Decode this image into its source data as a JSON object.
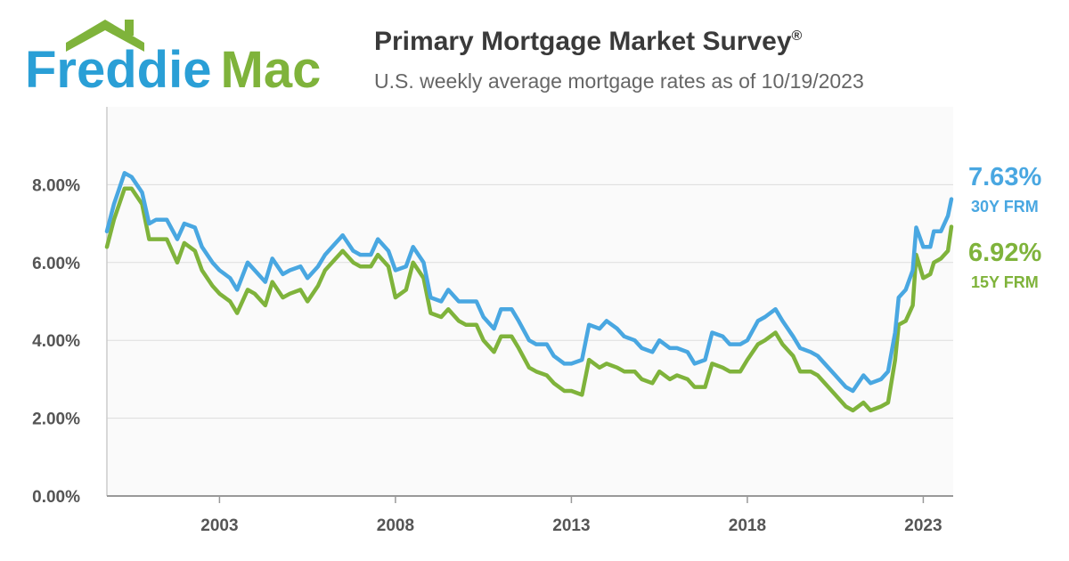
{
  "header": {
    "logo_text": "Freddie Mac",
    "title": "Primary Mortgage Market Survey",
    "title_mark": "®",
    "subtitle": "U.S. weekly average mortgage rates as of 10/19/2023"
  },
  "colors": {
    "series_30y": "#49a7e1",
    "series_15y": "#7fb33b",
    "logo_blue": "#2a9fd6",
    "logo_green": "#7fb33b"
  },
  "chart_data": {
    "type": "line",
    "title": "Primary Mortgage Market Survey®",
    "subtitle": "U.S. weekly average mortgage rates as of 10/19/2023",
    "xlabel": "",
    "ylabel": "",
    "xlim": [
      1999.8,
      2023.85
    ],
    "ylim": [
      0,
      10
    ],
    "x_ticks": [
      2003,
      2008,
      2013,
      2018,
      2023
    ],
    "x_tick_labels": [
      "2003",
      "2008",
      "2013",
      "2018",
      "2023"
    ],
    "y_ticks": [
      0,
      2,
      4,
      6,
      8
    ],
    "y_tick_labels": [
      "0.00%",
      "2.00%",
      "4.00%",
      "6.00%",
      "8.00%"
    ],
    "grid": "horizontal",
    "legend": "right-end labels",
    "series": [
      {
        "name": "30Y FRM",
        "last_value_label": "7.63%",
        "x": [
          1999.8,
          2000.0,
          2000.3,
          2000.5,
          2000.8,
          2001.0,
          2001.2,
          2001.5,
          2001.8,
          2002.0,
          2002.3,
          2002.5,
          2002.8,
          2003.0,
          2003.3,
          2003.5,
          2003.8,
          2004.0,
          2004.3,
          2004.5,
          2004.8,
          2005.0,
          2005.3,
          2005.5,
          2005.8,
          2006.0,
          2006.3,
          2006.5,
          2006.8,
          2007.0,
          2007.3,
          2007.5,
          2007.8,
          2008.0,
          2008.3,
          2008.5,
          2008.8,
          2009.0,
          2009.3,
          2009.5,
          2009.8,
          2010.0,
          2010.3,
          2010.5,
          2010.8,
          2011.0,
          2011.3,
          2011.5,
          2011.8,
          2012.0,
          2012.3,
          2012.5,
          2012.8,
          2013.0,
          2013.3,
          2013.5,
          2013.8,
          2014.0,
          2014.3,
          2014.5,
          2014.8,
          2015.0,
          2015.3,
          2015.5,
          2015.8,
          2016.0,
          2016.3,
          2016.5,
          2016.8,
          2017.0,
          2017.3,
          2017.5,
          2017.8,
          2018.0,
          2018.3,
          2018.5,
          2018.8,
          2019.0,
          2019.3,
          2019.5,
          2019.8,
          2020.0,
          2020.3,
          2020.5,
          2020.8,
          2021.0,
          2021.3,
          2021.5,
          2021.8,
          2022.0,
          2022.2,
          2022.3,
          2022.5,
          2022.7,
          2022.8,
          2023.0,
          2023.2,
          2023.3,
          2023.5,
          2023.7,
          2023.8
        ],
        "values": [
          6.8,
          7.5,
          8.3,
          8.2,
          7.8,
          7.0,
          7.1,
          7.1,
          6.6,
          7.0,
          6.9,
          6.4,
          6.0,
          5.8,
          5.6,
          5.3,
          6.0,
          5.8,
          5.5,
          6.1,
          5.7,
          5.8,
          5.9,
          5.6,
          5.9,
          6.2,
          6.5,
          6.7,
          6.3,
          6.2,
          6.2,
          6.6,
          6.3,
          5.8,
          5.9,
          6.4,
          6.0,
          5.1,
          5.0,
          5.3,
          5.0,
          5.0,
          5.0,
          4.6,
          4.3,
          4.8,
          4.8,
          4.5,
          4.0,
          3.9,
          3.9,
          3.6,
          3.4,
          3.4,
          3.5,
          4.4,
          4.3,
          4.5,
          4.3,
          4.1,
          4.0,
          3.8,
          3.7,
          4.0,
          3.8,
          3.8,
          3.7,
          3.4,
          3.5,
          4.2,
          4.1,
          3.9,
          3.9,
          4.0,
          4.5,
          4.6,
          4.8,
          4.5,
          4.1,
          3.8,
          3.7,
          3.6,
          3.3,
          3.1,
          2.8,
          2.7,
          3.1,
          2.9,
          3.0,
          3.2,
          4.2,
          5.1,
          5.3,
          5.8,
          6.9,
          6.4,
          6.4,
          6.8,
          6.8,
          7.2,
          7.63
        ]
      },
      {
        "name": "15Y FRM",
        "last_value_label": "6.92%",
        "x": [
          1999.8,
          2000.0,
          2000.3,
          2000.5,
          2000.8,
          2001.0,
          2001.2,
          2001.5,
          2001.8,
          2002.0,
          2002.3,
          2002.5,
          2002.8,
          2003.0,
          2003.3,
          2003.5,
          2003.8,
          2004.0,
          2004.3,
          2004.5,
          2004.8,
          2005.0,
          2005.3,
          2005.5,
          2005.8,
          2006.0,
          2006.3,
          2006.5,
          2006.8,
          2007.0,
          2007.3,
          2007.5,
          2007.8,
          2008.0,
          2008.3,
          2008.5,
          2008.8,
          2009.0,
          2009.3,
          2009.5,
          2009.8,
          2010.0,
          2010.3,
          2010.5,
          2010.8,
          2011.0,
          2011.3,
          2011.5,
          2011.8,
          2012.0,
          2012.3,
          2012.5,
          2012.8,
          2013.0,
          2013.3,
          2013.5,
          2013.8,
          2014.0,
          2014.3,
          2014.5,
          2014.8,
          2015.0,
          2015.3,
          2015.5,
          2015.8,
          2016.0,
          2016.3,
          2016.5,
          2016.8,
          2017.0,
          2017.3,
          2017.5,
          2017.8,
          2018.0,
          2018.3,
          2018.5,
          2018.8,
          2019.0,
          2019.3,
          2019.5,
          2019.8,
          2020.0,
          2020.3,
          2020.5,
          2020.8,
          2021.0,
          2021.3,
          2021.5,
          2021.8,
          2022.0,
          2022.2,
          2022.3,
          2022.5,
          2022.7,
          2022.8,
          2023.0,
          2023.2,
          2023.3,
          2023.5,
          2023.7,
          2023.8
        ],
        "values": [
          6.4,
          7.1,
          7.9,
          7.9,
          7.5,
          6.6,
          6.6,
          6.6,
          6.0,
          6.5,
          6.3,
          5.8,
          5.4,
          5.2,
          5.0,
          4.7,
          5.3,
          5.2,
          4.9,
          5.5,
          5.1,
          5.2,
          5.3,
          5.0,
          5.4,
          5.8,
          6.1,
          6.3,
          6.0,
          5.9,
          5.9,
          6.2,
          5.9,
          5.1,
          5.3,
          6.0,
          5.6,
          4.7,
          4.6,
          4.8,
          4.5,
          4.4,
          4.4,
          4.0,
          3.7,
          4.1,
          4.1,
          3.8,
          3.3,
          3.2,
          3.1,
          2.9,
          2.7,
          2.7,
          2.6,
          3.5,
          3.3,
          3.4,
          3.3,
          3.2,
          3.2,
          3.0,
          2.9,
          3.2,
          3.0,
          3.1,
          3.0,
          2.8,
          2.8,
          3.4,
          3.3,
          3.2,
          3.2,
          3.5,
          3.9,
          4.0,
          4.2,
          3.9,
          3.6,
          3.2,
          3.2,
          3.1,
          2.8,
          2.6,
          2.3,
          2.2,
          2.4,
          2.2,
          2.3,
          2.4,
          3.5,
          4.4,
          4.5,
          4.9,
          6.2,
          5.6,
          5.7,
          6.0,
          6.1,
          6.3,
          6.92
        ]
      }
    ]
  }
}
